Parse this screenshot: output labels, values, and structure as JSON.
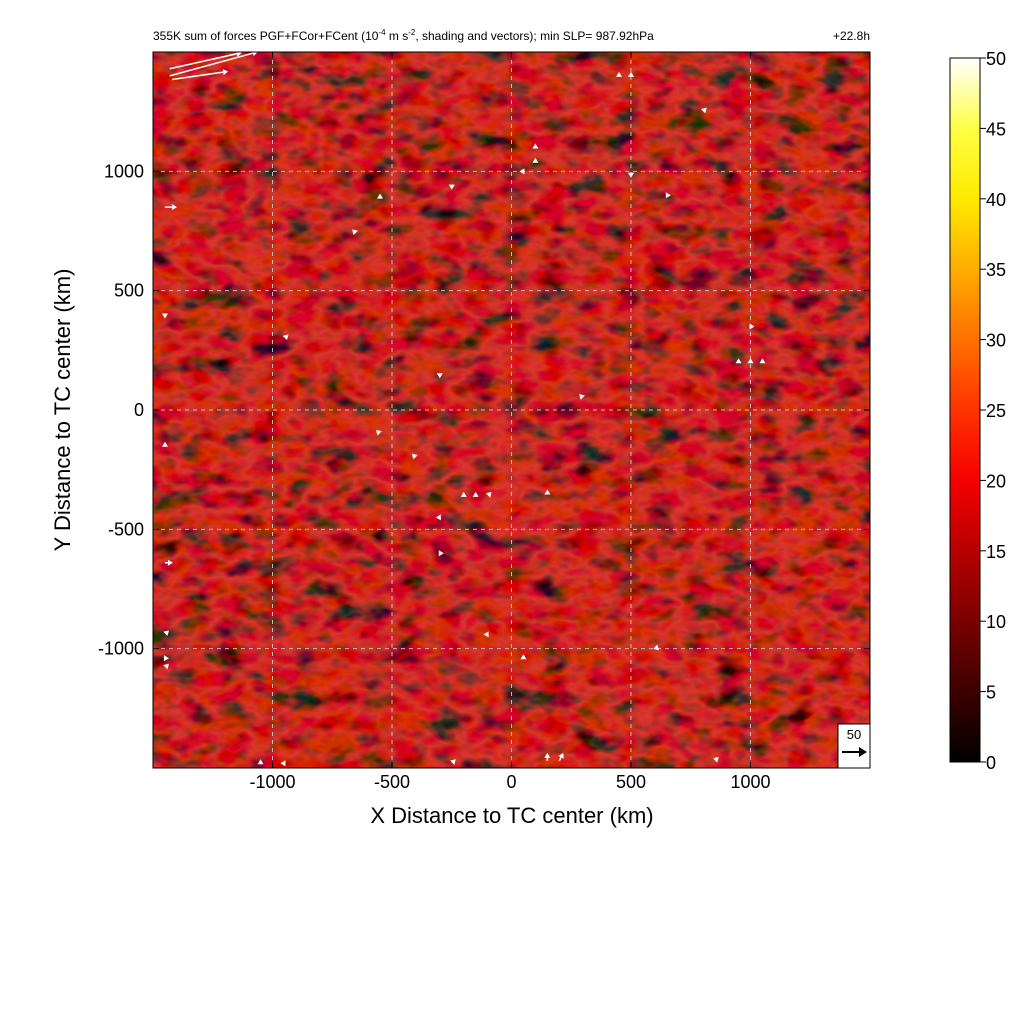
{
  "chart_data": {
    "type": "heatmap",
    "title": "355K sum of forces PGF+FCor+FCent (10",
    "title_exponent": "-4",
    "title_units_mid": " m s",
    "title_units_exponent": "-2",
    "title_rest": ", shading and vectors); min SLP= 987.92hPa",
    "time_label": "+22.8h",
    "xlabel": "X Distance to TC center (km)",
    "ylabel": "Y Distance to TC center (km)",
    "xlim": [
      -1500,
      1500
    ],
    "ylim": [
      -1500,
      1500
    ],
    "x_ticks": [
      -1000,
      -500,
      0,
      500,
      1000
    ],
    "y_ticks": [
      -1000,
      -500,
      0,
      500,
      1000
    ],
    "x_tick_labels": [
      "-1000",
      "-500",
      "0",
      "500",
      "1000"
    ],
    "y_tick_labels": [
      "-1000",
      "-500",
      "0",
      "500",
      "1000"
    ],
    "grid": true,
    "colorbar": {
      "min": 0,
      "max": 50,
      "ticks": [
        0,
        5,
        10,
        15,
        20,
        25,
        30,
        35,
        40,
        45,
        50
      ],
      "tick_labels": [
        "0",
        "5",
        "10",
        "15",
        "20",
        "25",
        "30",
        "35",
        "40",
        "45",
        "50"
      ],
      "colormap": "hot",
      "colors": [
        "#000000",
        "#3d0000",
        "#7a0000",
        "#b80000",
        "#f50000",
        "#ff3300",
        "#ff7000",
        "#ffad00",
        "#ffea00",
        "#ffff45",
        "#ffffff"
      ]
    },
    "field_typical_range": [
      0,
      12
    ],
    "vector_reference": {
      "value": 50,
      "label": "50"
    },
    "vectors": [
      {
        "x": -1430,
        "y": 1430,
        "u": 18,
        "v": 4
      },
      {
        "x": -1430,
        "y": 1400,
        "u": 22,
        "v": 6
      },
      {
        "x": -1420,
        "y": 1385,
        "u": 14,
        "v": 2
      },
      {
        "x": -1450,
        "y": 850,
        "u": 3,
        "v": 0
      },
      {
        "x": 450,
        "y": 1400,
        "u": 0,
        "v": 1
      },
      {
        "x": 500,
        "y": 1400,
        "u": 0,
        "v": 1
      },
      {
        "x": 800,
        "y": 1250,
        "u": 1,
        "v": 1
      },
      {
        "x": 100,
        "y": 1100,
        "u": 0,
        "v": 1
      },
      {
        "x": 100,
        "y": 1040,
        "u": 0,
        "v": 1
      },
      {
        "x": 50,
        "y": 1000,
        "u": -1,
        "v": 0
      },
      {
        "x": 500,
        "y": 990,
        "u": 0,
        "v": -1
      },
      {
        "x": -250,
        "y": 940,
        "u": 0,
        "v": -1
      },
      {
        "x": -550,
        "y": 890,
        "u": 0,
        "v": 1
      },
      {
        "x": 650,
        "y": 900,
        "u": 1,
        "v": 0
      },
      {
        "x": -650,
        "y": 740,
        "u": -1,
        "v": 1
      },
      {
        "x": -950,
        "y": 300,
        "u": 1,
        "v": 1
      },
      {
        "x": 1000,
        "y": 350,
        "u": 1,
        "v": 0
      },
      {
        "x": 950,
        "y": 200,
        "u": 0,
        "v": 1
      },
      {
        "x": 1000,
        "y": 200,
        "u": 0,
        "v": 1
      },
      {
        "x": 1050,
        "y": 200,
        "u": 0,
        "v": 1
      },
      {
        "x": -300,
        "y": 150,
        "u": 0,
        "v": -1
      },
      {
        "x": 300,
        "y": 50,
        "u": -1,
        "v": 1
      },
      {
        "x": -550,
        "y": -100,
        "u": -1,
        "v": 1
      },
      {
        "x": -400,
        "y": -200,
        "u": -1,
        "v": 1
      },
      {
        "x": -200,
        "y": -360,
        "u": 0,
        "v": 1
      },
      {
        "x": -150,
        "y": -360,
        "u": 0,
        "v": 1
      },
      {
        "x": -100,
        "y": -360,
        "u": 1,
        "v": 1
      },
      {
        "x": 150,
        "y": -350,
        "u": 0,
        "v": 1
      },
      {
        "x": -300,
        "y": -450,
        "u": -1,
        "v": 0
      },
      {
        "x": -300,
        "y": -600,
        "u": 1,
        "v": 0
      },
      {
        "x": -100,
        "y": -940,
        "u": -1,
        "v": 0
      },
      {
        "x": 50,
        "y": -1040,
        "u": 0,
        "v": 1
      },
      {
        "x": 600,
        "y": -990,
        "u": 1,
        "v": -1
      },
      {
        "x": -1450,
        "y": -640,
        "u": 2,
        "v": 0
      },
      {
        "x": -1450,
        "y": -940,
        "u": 1,
        "v": 1
      },
      {
        "x": -1450,
        "y": -1040,
        "u": 1,
        "v": 0
      },
      {
        "x": -1450,
        "y": -1080,
        "u": 1,
        "v": 1
      },
      {
        "x": -1450,
        "y": -150,
        "u": 0,
        "v": 1
      },
      {
        "x": -1450,
        "y": 400,
        "u": 0,
        "v": -1
      },
      {
        "x": 150,
        "y": -1470,
        "u": 0,
        "v": 2
      },
      {
        "x": 200,
        "y": -1470,
        "u": 1,
        "v": 2
      },
      {
        "x": 850,
        "y": -1470,
        "u": 1,
        "v": 1
      },
      {
        "x": -1050,
        "y": -1480,
        "u": 0,
        "v": 1
      },
      {
        "x": -950,
        "y": -1480,
        "u": -1,
        "v": 0
      },
      {
        "x": -250,
        "y": -1480,
        "u": 1,
        "v": 1
      }
    ]
  }
}
